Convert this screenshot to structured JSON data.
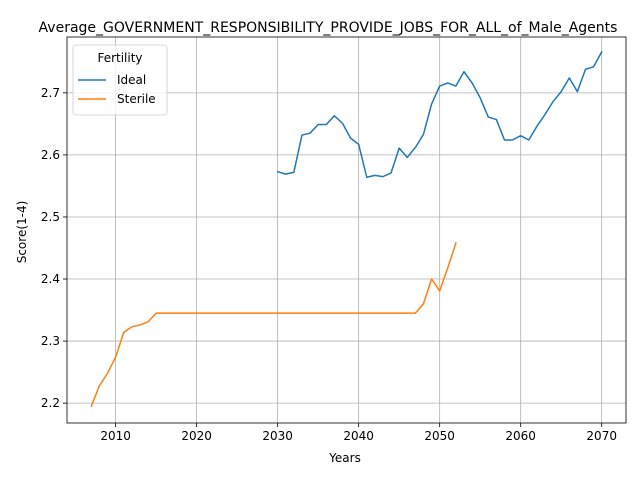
{
  "chart_data": {
    "type": "line",
    "title": "Average_GOVERNMENT_RESPONSIBILITY_PROVIDE_JOBS_FOR_ALL_of_Male_Agents",
    "xlabel": "Years",
    "ylabel": "Score(1-4)",
    "xlim": [
      2004,
      2073
    ],
    "ylim": [
      2.168,
      2.79
    ],
    "xticks": [
      2010,
      2020,
      2030,
      2040,
      2050,
      2060,
      2070
    ],
    "yticks": [
      2.2,
      2.3,
      2.4,
      2.5,
      2.6,
      2.7
    ],
    "grid": true,
    "legend": {
      "title": "Fertility",
      "placement": "top-left"
    },
    "series": [
      {
        "name": "Ideal",
        "color": "#1f77b4",
        "x": [
          2030,
          2031,
          2032,
          2033,
          2034,
          2035,
          2036,
          2037,
          2038,
          2039,
          2040,
          2041,
          2042,
          2043,
          2044,
          2045,
          2046,
          2047,
          2048,
          2049,
          2050,
          2051,
          2052,
          2053,
          2054,
          2055,
          2056,
          2057,
          2058,
          2059,
          2060,
          2061,
          2062,
          2063,
          2064,
          2065,
          2066,
          2067,
          2068,
          2069,
          2070
        ],
        "values": [
          2.573,
          2.569,
          2.572,
          2.632,
          2.635,
          2.649,
          2.649,
          2.663,
          2.651,
          2.627,
          2.617,
          2.564,
          2.567,
          2.565,
          2.571,
          2.611,
          2.596,
          2.612,
          2.633,
          2.682,
          2.711,
          2.716,
          2.711,
          2.734,
          2.716,
          2.692,
          2.661,
          2.657,
          2.624,
          2.624,
          2.631,
          2.624,
          2.646,
          2.665,
          2.686,
          2.702,
          2.724,
          2.702,
          2.738,
          2.742,
          2.766
        ]
      },
      {
        "name": "Sterile",
        "color": "#ff7f0e",
        "x": [
          2007,
          2008,
          2009,
          2010,
          2011,
          2012,
          2013,
          2014,
          2015,
          2016,
          2017,
          2018,
          2019,
          2020,
          2021,
          2022,
          2023,
          2024,
          2025,
          2026,
          2027,
          2028,
          2029,
          2030,
          2031,
          2032,
          2033,
          2034,
          2035,
          2036,
          2037,
          2038,
          2039,
          2040,
          2041,
          2042,
          2043,
          2044,
          2045,
          2046,
          2047,
          2048,
          2049,
          2050,
          2051,
          2052
        ],
        "values": [
          2.195,
          2.228,
          2.248,
          2.274,
          2.314,
          2.323,
          2.326,
          2.331,
          2.345,
          2.345,
          2.345,
          2.345,
          2.345,
          2.345,
          2.345,
          2.345,
          2.345,
          2.345,
          2.345,
          2.345,
          2.345,
          2.345,
          2.345,
          2.345,
          2.345,
          2.345,
          2.345,
          2.345,
          2.345,
          2.345,
          2.345,
          2.345,
          2.345,
          2.345,
          2.345,
          2.345,
          2.345,
          2.345,
          2.345,
          2.345,
          2.345,
          2.36,
          2.4,
          2.381,
          2.418,
          2.458
        ]
      }
    ]
  }
}
